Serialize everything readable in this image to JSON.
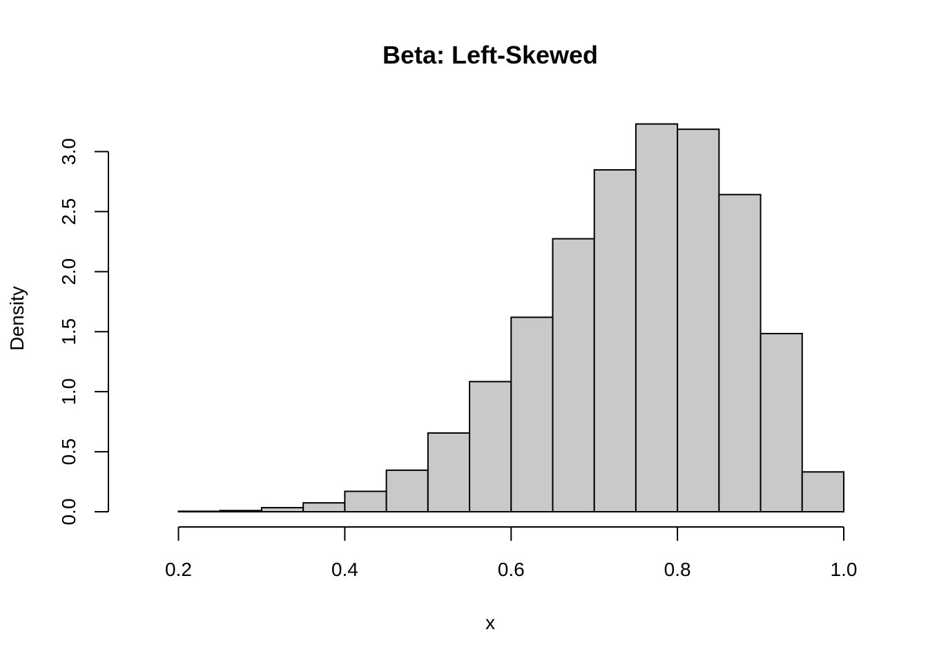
{
  "chart_data": {
    "type": "bar",
    "subtype": "histogram",
    "title": "Beta: Left-Skewed",
    "xlabel": "x",
    "ylabel": "Density",
    "bin_edges": [
      0.15,
      0.2,
      0.25,
      0.3,
      0.35,
      0.4,
      0.45,
      0.5,
      0.55,
      0.6,
      0.65,
      0.7,
      0.75,
      0.8,
      0.85,
      0.9,
      0.95,
      1.0
    ],
    "values": [
      0.0,
      0.004,
      0.01,
      0.034,
      0.074,
      0.17,
      0.346,
      0.656,
      1.084,
      1.62,
      2.274,
      2.848,
      3.23,
      3.186,
      2.642,
      1.484,
      0.332
    ],
    "x_ticks": [
      0.2,
      0.4,
      0.6,
      0.8,
      1.0
    ],
    "x_tick_labels": [
      "0.2",
      "0.4",
      "0.6",
      "0.8",
      "1.0"
    ],
    "y_ticks": [
      0.0,
      0.5,
      1.0,
      1.5,
      2.0,
      2.5,
      3.0
    ],
    "y_tick_labels": [
      "0.0",
      "0.5",
      "1.0",
      "1.5",
      "2.0",
      "2.5",
      "3.0"
    ],
    "xlim": [
      0.15,
      1.0
    ],
    "ylim": [
      0,
      3.3
    ],
    "bar_fill": "#c9c9c9",
    "bar_stroke": "#000000",
    "grid": false
  }
}
